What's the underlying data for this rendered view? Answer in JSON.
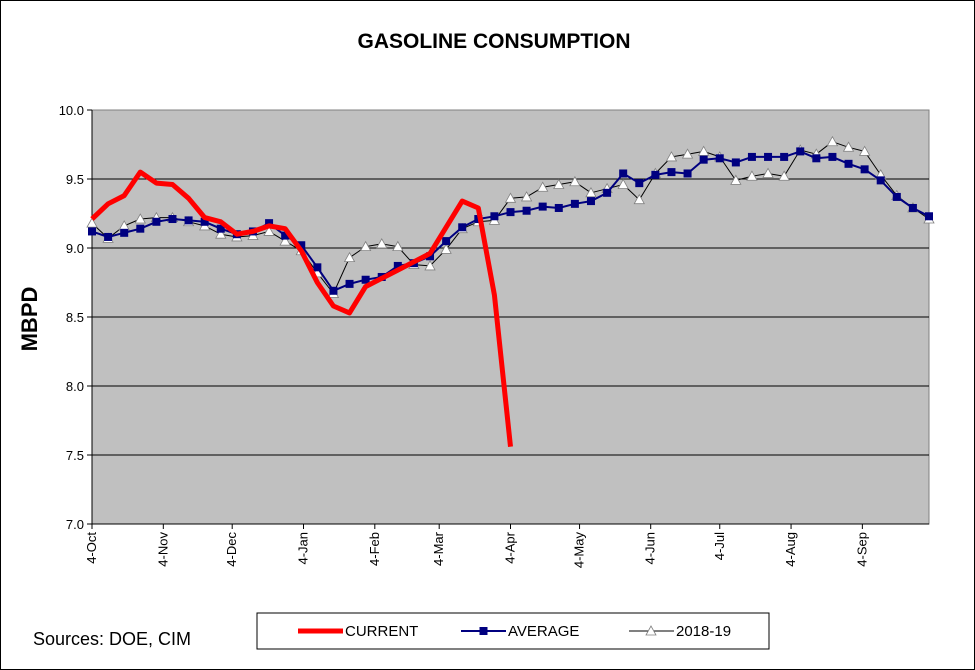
{
  "chart_data": {
    "type": "line",
    "title": "GASOLINE CONSUMPTION",
    "xlabel": "",
    "ylabel": "MBPD",
    "ylim": [
      7.0,
      10.0
    ],
    "yticks": [
      "7.0",
      "7.5",
      "8.0",
      "8.5",
      "9.0",
      "9.5",
      "10.0"
    ],
    "xrange": [
      0,
      52
    ],
    "x_tick_labels": [
      {
        "label": "4-Oct",
        "x": 0
      },
      {
        "label": "4-Nov",
        "x": 4.43
      },
      {
        "label": "4-Dec",
        "x": 8.71
      },
      {
        "label": "4-Jan",
        "x": 13.14
      },
      {
        "label": "4-Feb",
        "x": 17.57
      },
      {
        "label": "4-Mar",
        "x": 21.57
      },
      {
        "label": "4-Apr",
        "x": 26.0
      },
      {
        "label": "4-May",
        "x": 30.29
      },
      {
        "label": "4-Jun",
        "x": 34.71
      },
      {
        "label": "4-Jul",
        "x": 39.0
      },
      {
        "label": "4-Aug",
        "x": 43.43
      },
      {
        "label": "4-Sep",
        "x": 47.86
      }
    ],
    "grid": true,
    "legend": "bottom",
    "series": [
      {
        "name": "CURRENT",
        "color": "#ff0000",
        "marker": "none",
        "values": [
          9.21,
          9.32,
          9.38,
          9.55,
          9.47,
          9.46,
          9.36,
          9.22,
          9.19,
          9.1,
          9.12,
          9.16,
          9.14,
          8.98,
          8.75,
          8.58,
          8.53,
          8.72,
          8.78,
          8.84,
          8.9,
          8.96,
          9.15,
          9.34,
          9.29,
          8.66,
          7.56
        ]
      },
      {
        "name": "AVERAGE",
        "color": "#000080",
        "marker": "square",
        "values": [
          9.12,
          9.08,
          9.11,
          9.14,
          9.19,
          9.21,
          9.2,
          9.19,
          9.14,
          9.1,
          9.12,
          9.18,
          9.09,
          9.02,
          8.86,
          8.69,
          8.74,
          8.77,
          8.79,
          8.87,
          8.89,
          8.94,
          9.05,
          9.15,
          9.21,
          9.23,
          9.26,
          9.27,
          9.3,
          9.29,
          9.32,
          9.34,
          9.4,
          9.54,
          9.47,
          9.53,
          9.55,
          9.54,
          9.64,
          9.65,
          9.62,
          9.66,
          9.66,
          9.66,
          9.7,
          9.65,
          9.66,
          9.61,
          9.57,
          9.49,
          9.37,
          9.29,
          9.23
        ]
      },
      {
        "name": "2018-19",
        "color": "#000000",
        "marker": "triangle",
        "values": [
          9.18,
          9.07,
          9.16,
          9.21,
          9.22,
          9.22,
          9.19,
          9.16,
          9.1,
          9.08,
          9.09,
          9.12,
          9.05,
          8.98,
          8.82,
          8.67,
          8.93,
          9.01,
          9.03,
          9.01,
          8.88,
          8.87,
          8.99,
          9.14,
          9.19,
          9.2,
          9.36,
          9.37,
          9.44,
          9.46,
          9.48,
          9.4,
          9.43,
          9.46,
          9.35,
          9.54,
          9.66,
          9.68,
          9.7,
          9.66,
          9.49,
          9.52,
          9.54,
          9.52,
          9.71,
          9.68,
          9.77,
          9.73,
          9.7,
          9.53,
          9.38,
          9.29,
          9.21
        ]
      }
    ]
  },
  "sources": "Sources:  DOE, CIM"
}
